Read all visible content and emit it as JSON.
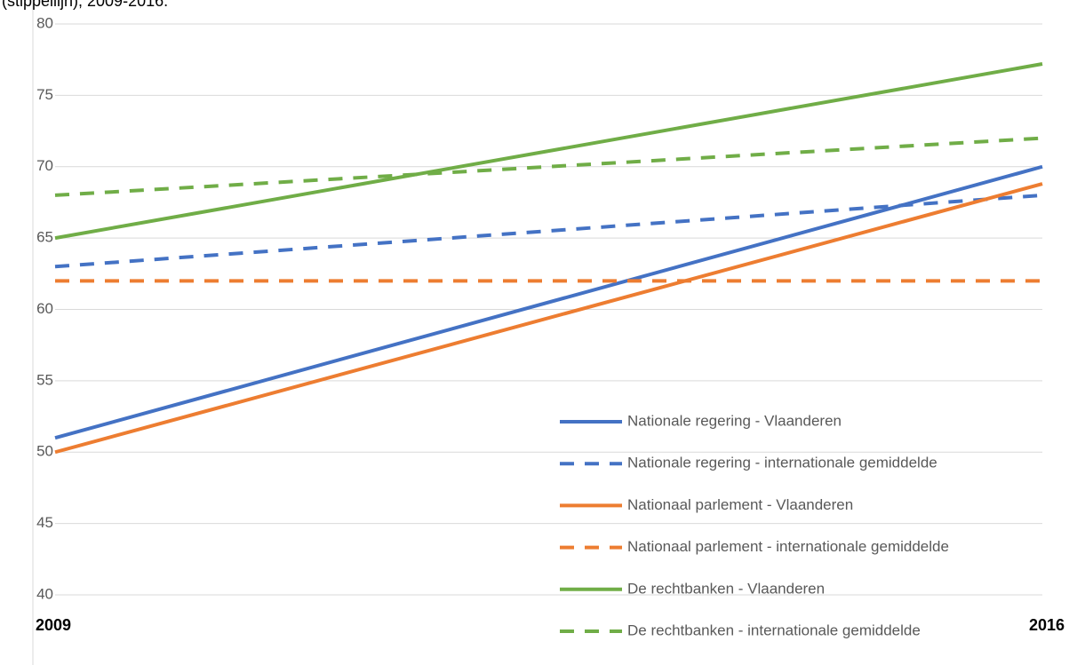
{
  "chart_data": {
    "type": "line",
    "title": "(stippellijn), 2009-2016.",
    "categories": [
      "2009",
      "2016"
    ],
    "series": [
      {
        "name": "Nationale regering - Vlaanderen",
        "color": "#4472c4",
        "dashed": false,
        "values": [
          51,
          70
        ]
      },
      {
        "name": "Nationale regering - internationale gemiddelde",
        "color": "#4472c4",
        "dashed": true,
        "values": [
          63,
          68
        ]
      },
      {
        "name": "Nationaal parlement - Vlaanderen",
        "color": "#ed7d31",
        "dashed": false,
        "values": [
          50,
          68.8
        ]
      },
      {
        "name": "Nationaal parlement - internationale gemiddelde",
        "color": "#ed7d31",
        "dashed": true,
        "values": [
          62,
          62
        ]
      },
      {
        "name": "De rechtbanken - Vlaanderen",
        "color": "#70ad47",
        "dashed": false,
        "values": [
          65,
          77.2
        ]
      },
      {
        "name": "De rechtbanken - internationale gemiddelde",
        "color": "#70ad47",
        "dashed": true,
        "values": [
          68,
          72
        ]
      }
    ],
    "ylim": [
      40,
      80
    ],
    "yticks": [
      40,
      45,
      50,
      55,
      60,
      65,
      70,
      75,
      80
    ],
    "grid": true
  }
}
